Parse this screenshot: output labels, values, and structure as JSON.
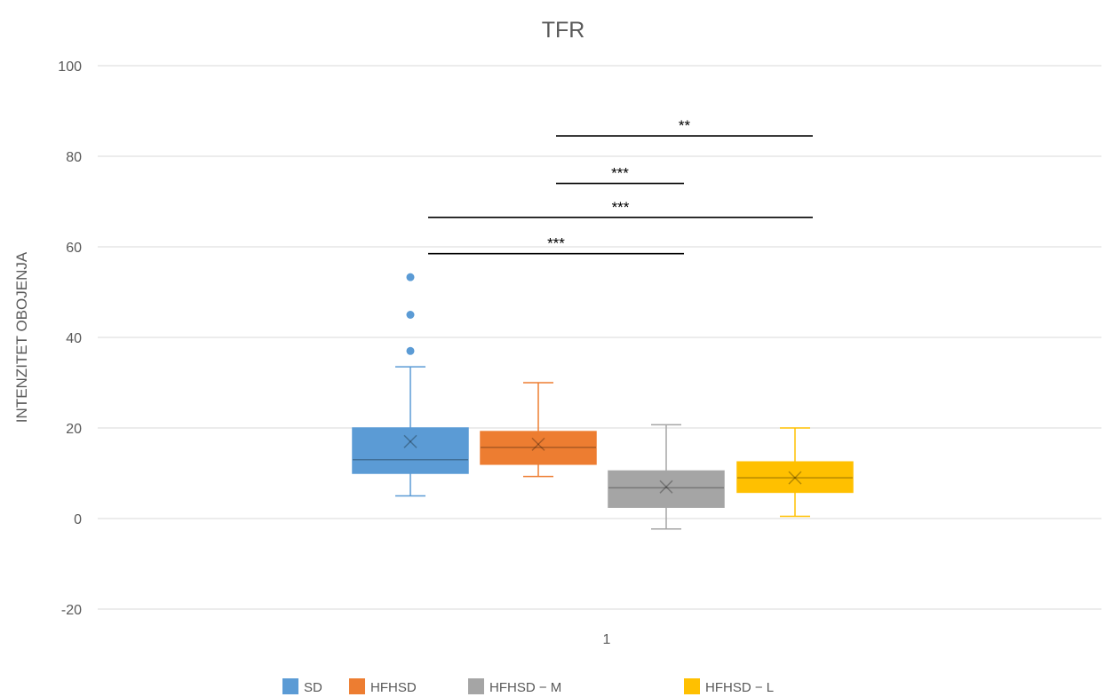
{
  "chart_data": {
    "type": "box",
    "title": "TFR",
    "xlabel": "",
    "ylabel": "INTENZITET OBOJENJA",
    "ylim": [
      -20,
      100
    ],
    "y_ticks": [
      -20,
      0,
      20,
      40,
      60,
      80,
      100
    ],
    "categories": [
      "1"
    ],
    "grid": true,
    "legend_position": "bottom",
    "series": [
      {
        "name": "SD",
        "color": "#5b9bd5",
        "min": 5,
        "q1": 10,
        "median": 13,
        "q3": 20,
        "max": 33.5,
        "mean": 17,
        "outliers": [
          37,
          45,
          53.3
        ]
      },
      {
        "name": "HFHSD",
        "color": "#ed7d31",
        "min": 9.3,
        "q1": 12,
        "median": 15.7,
        "q3": 19.2,
        "max": 30,
        "mean": 16.4,
        "outliers": []
      },
      {
        "name": "HFHSD − M",
        "color": "#a5a5a5",
        "min": -2.3,
        "q1": 2.5,
        "median": 6.8,
        "q3": 10.5,
        "max": 20.7,
        "mean": 7,
        "outliers": []
      },
      {
        "name": "HFHSD − L",
        "color": "#ffc000",
        "min": 0.5,
        "q1": 5.8,
        "median": 9,
        "q3": 12.5,
        "max": 20,
        "mean": 9,
        "outliers": []
      }
    ],
    "significance": [
      {
        "label": "**",
        "from": "HFHSD",
        "to": "HFHSD − L",
        "y": 84.5
      },
      {
        "label": "***",
        "from": "HFHSD",
        "to": "HFHSD − M",
        "y": 74
      },
      {
        "label": "***",
        "from": "SD",
        "to": "HFHSD − L",
        "y": 66.5
      },
      {
        "label": "***",
        "from": "SD",
        "to": "HFHSD − M",
        "y": 58.5
      }
    ]
  }
}
